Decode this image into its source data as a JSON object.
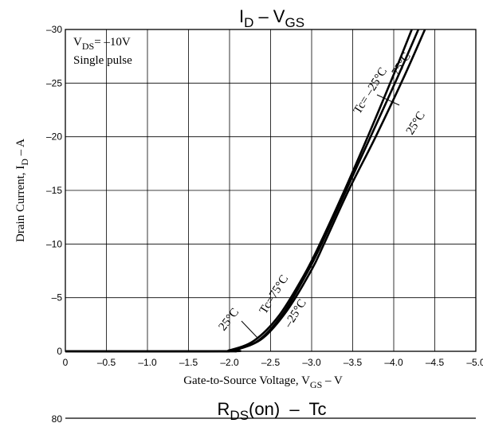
{
  "chart_data": {
    "type": "line",
    "title": {
      "main": "I",
      "sub": "D",
      "mid": " – V",
      "sub2": "GS"
    },
    "xlabel": {
      "main": "Gate-to-Source Voltage, V",
      "sub": "GS",
      "tail": " – V"
    },
    "ylabel": {
      "main": "Drain Current, I",
      "sub": "D",
      "tail": " – A"
    },
    "xlim": [
      0,
      -5.0
    ],
    "ylim": [
      0,
      -30
    ],
    "x_ticks": [
      0,
      -0.5,
      -1.0,
      -1.5,
      -2.0,
      -2.5,
      -3.0,
      -3.5,
      -4.0,
      -4.5,
      -5.0
    ],
    "x_tick_labels": [
      "0",
      "–0.5",
      "–1.0",
      "–1.5",
      "–2.0",
      "–2.5",
      "–3.0",
      "–3.5",
      "–4.0",
      "–4.5",
      "–5.0"
    ],
    "y_ticks": [
      0,
      -5,
      -10,
      -15,
      -20,
      -25,
      -30
    ],
    "y_tick_labels": [
      "0",
      "–5",
      "–10",
      "–15",
      "–20",
      "–25",
      "–30"
    ],
    "grid": true,
    "conditions": {
      "line1_main": "V",
      "line1_sub": "DS",
      "line1_tail": "= –10V",
      "line2": "Single pulse"
    },
    "series": [
      {
        "name": "Tc= –25°C",
        "points": [
          [
            0,
            0
          ],
          [
            -1.8,
            0
          ],
          [
            -2.0,
            -0.1
          ],
          [
            -2.3,
            -1.0
          ],
          [
            -2.6,
            -3.3
          ],
          [
            -2.9,
            -7.0
          ],
          [
            -3.1,
            -10.0
          ],
          [
            -3.4,
            -15.0
          ],
          [
            -3.7,
            -20.3
          ],
          [
            -4.0,
            -25.8
          ],
          [
            -4.22,
            -30.0
          ]
        ]
      },
      {
        "name": "25°C",
        "points": [
          [
            0,
            0
          ],
          [
            -1.9,
            0
          ],
          [
            -2.05,
            -0.1
          ],
          [
            -2.35,
            -1.0
          ],
          [
            -2.65,
            -3.5
          ],
          [
            -2.95,
            -7.4
          ],
          [
            -3.12,
            -10.0
          ],
          [
            -3.42,
            -15.0
          ],
          [
            -3.73,
            -20.2
          ],
          [
            -4.05,
            -25.6
          ],
          [
            -4.3,
            -30.0
          ]
        ]
      },
      {
        "name": "75°C",
        "points": [
          [
            0,
            0
          ],
          [
            -1.95,
            0
          ],
          [
            -2.1,
            -0.2
          ],
          [
            -2.4,
            -1.2
          ],
          [
            -2.7,
            -3.8
          ],
          [
            -3.0,
            -7.6
          ],
          [
            -3.15,
            -10.0
          ],
          [
            -3.45,
            -15.0
          ],
          [
            -3.78,
            -20.0
          ],
          [
            -4.12,
            -25.5
          ],
          [
            -4.38,
            -30.0
          ]
        ]
      }
    ],
    "annotations": [
      "Tc= –25°C",
      "75°C",
      "25°C",
      "25°C",
      "Tc=75°C",
      "–25°C"
    ]
  },
  "next_chart_title": {
    "main": "R",
    "sub": "DS",
    "tail": "(on)  –  Tc"
  },
  "next_chart_first_tick": "80"
}
